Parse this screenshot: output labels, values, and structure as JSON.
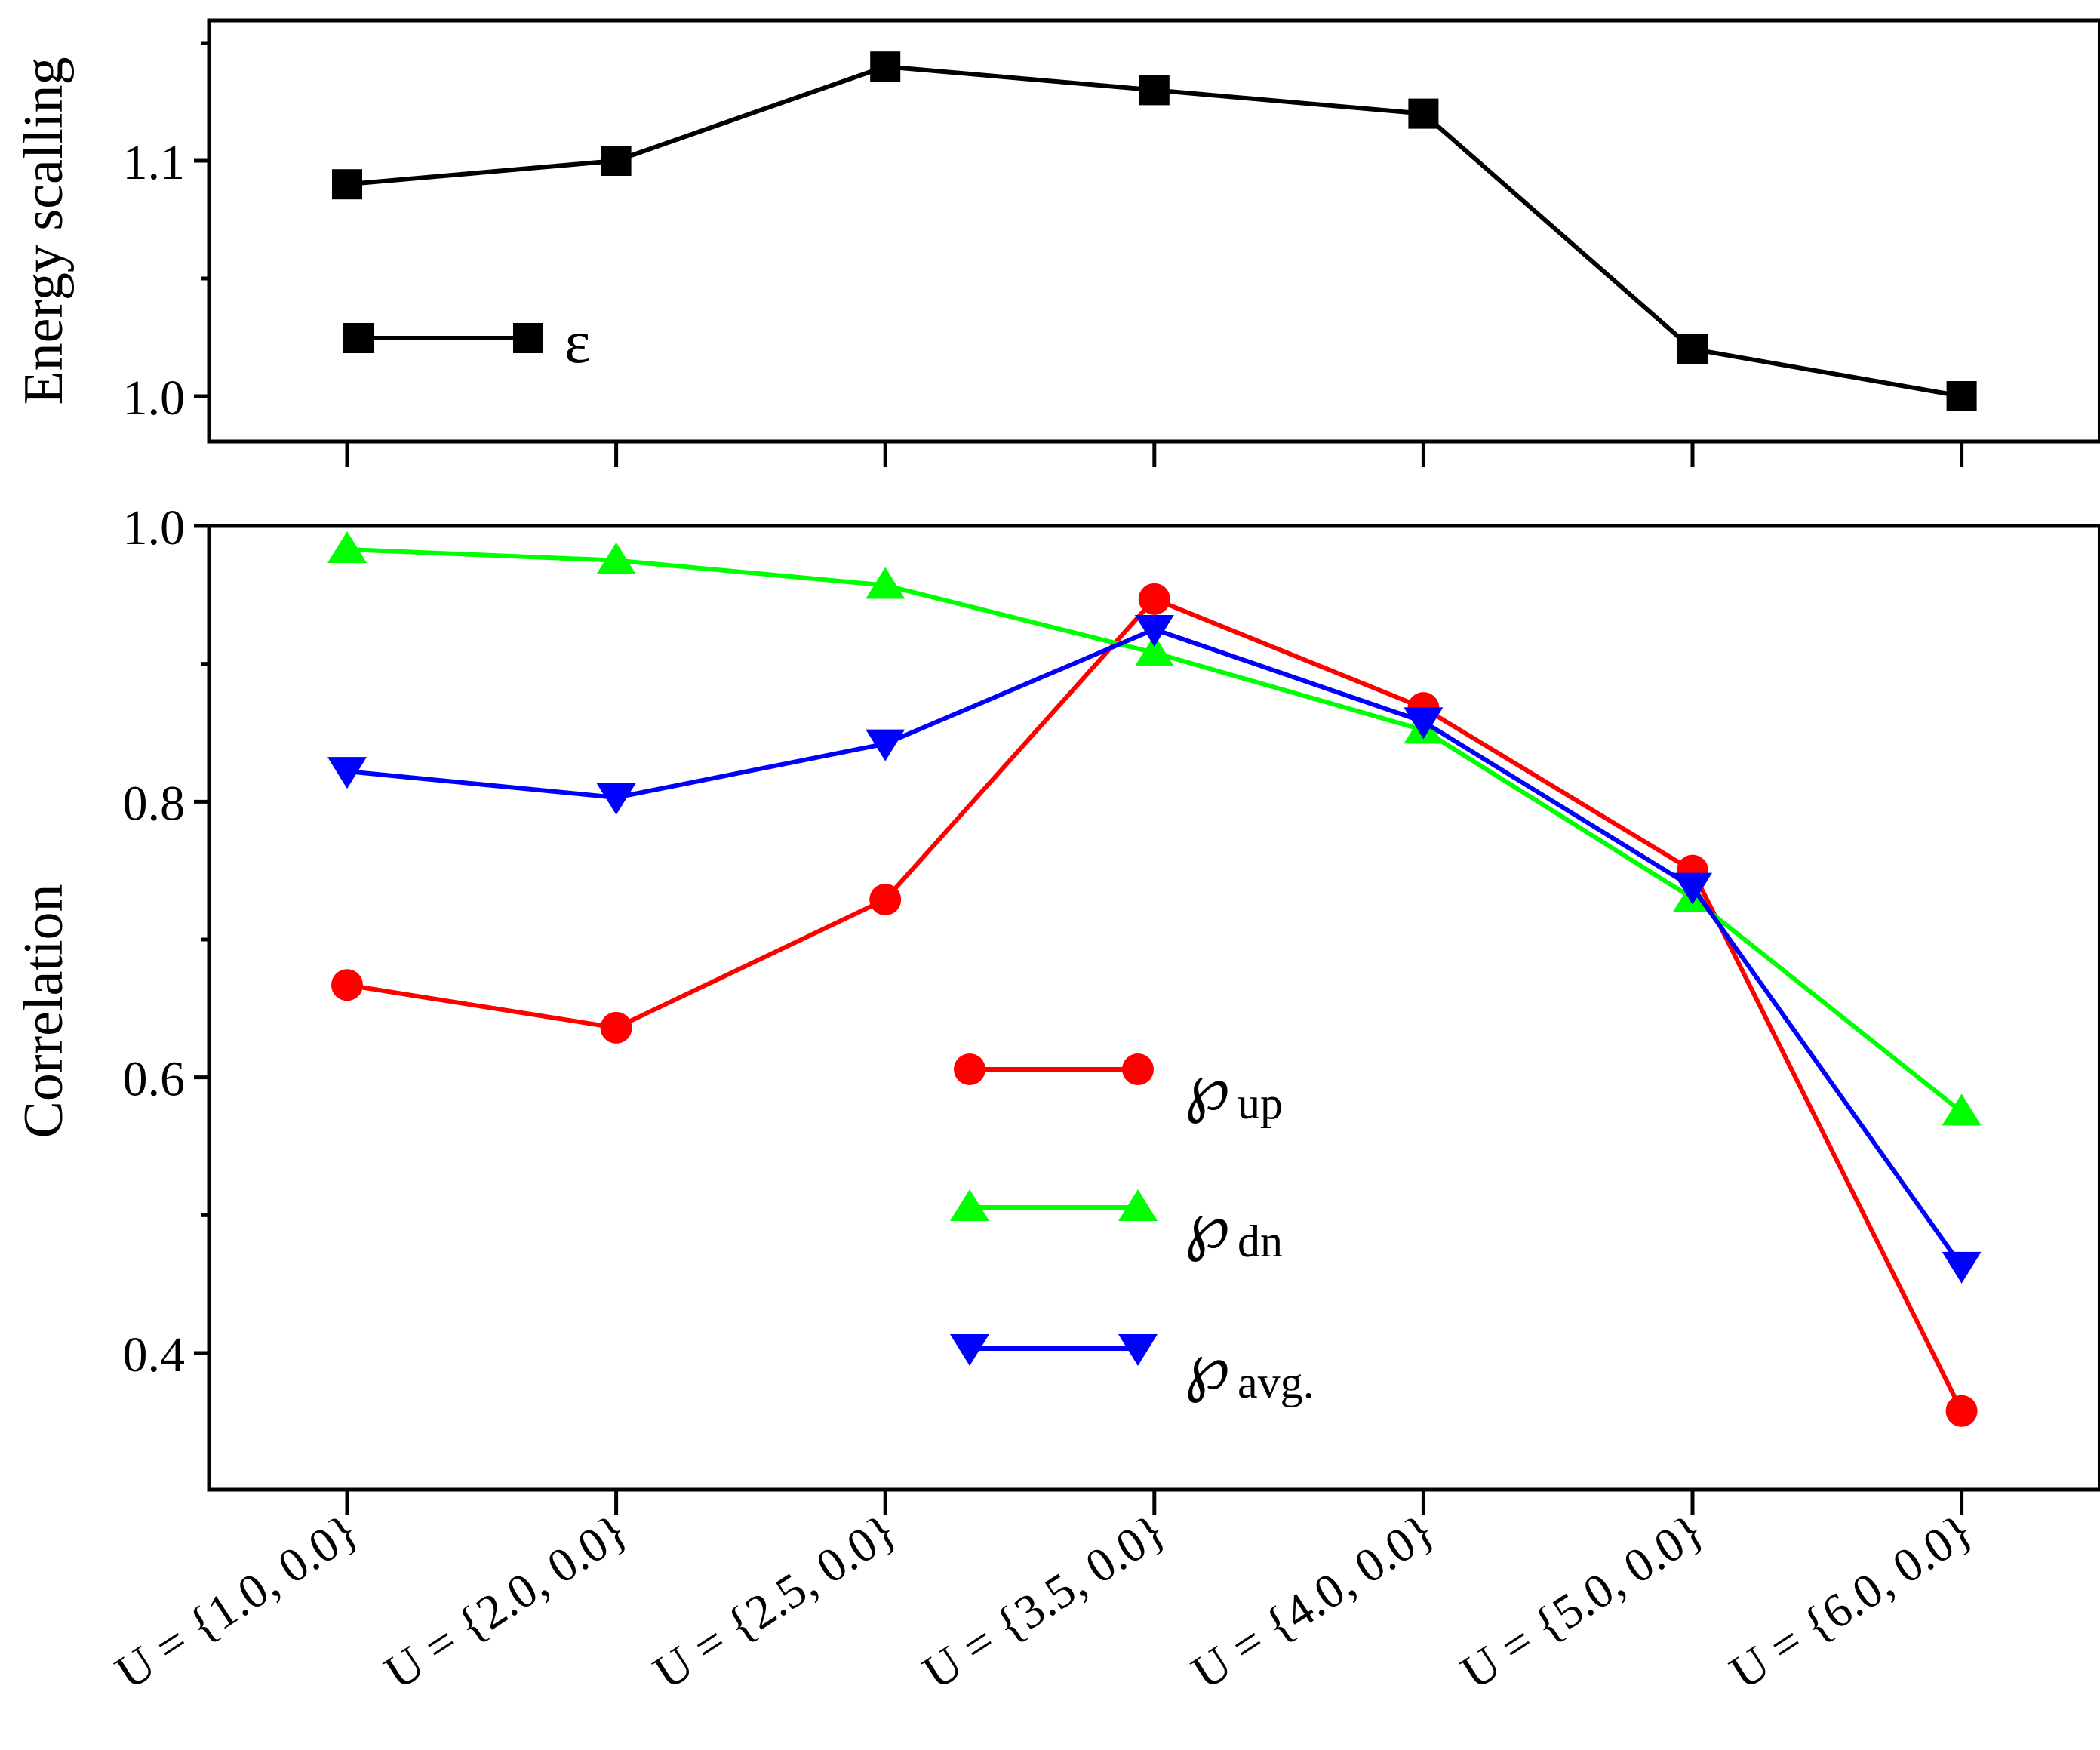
{
  "chart_data": [
    {
      "type": "line",
      "id": "energy",
      "ylabel": "Energy scalling",
      "ylim": [
        0.98,
        1.16
      ],
      "yticks_major": [
        1.0,
        1.1
      ],
      "yticks_minor": [
        1.05,
        1.15
      ],
      "ytick_labels": [
        "1.0",
        "1.1"
      ],
      "categories": [
        "U = {1.0, 0.0}",
        "U = {2.0, 0.0}",
        "U = {2.5, 0.0}",
        "U = {3.5, 0.0}",
        "U = {4.0, 0.0}",
        "U = {5.0, 0.0}",
        "U = {6.0, 0.0}"
      ],
      "series": [
        {
          "name": "ε",
          "color": "#000000",
          "marker": "square",
          "values": [
            1.09,
            1.1,
            1.14,
            1.13,
            1.12,
            1.02,
            1.0
          ]
        }
      ],
      "legend_position": "center-left"
    },
    {
      "type": "line",
      "id": "correlation",
      "ylabel": "Correlation",
      "ylim": [
        0.3,
        1.0
      ],
      "yticks_major": [
        0.4,
        0.6,
        0.8,
        1.0
      ],
      "yticks_minor": [
        0.5,
        0.7,
        0.9
      ],
      "ytick_labels": [
        "0.4",
        "0.6",
        "0.8",
        "1.0"
      ],
      "categories": [
        "U = {1.0, 0.0}",
        "U = {2.0, 0.0}",
        "U = {2.5, 0.0}",
        "U = {3.5, 0.0}",
        "U = {4.0, 0.0}",
        "U = {5.0, 0.0}",
        "U = {6.0, 0.0}"
      ],
      "series": [
        {
          "name": "℘",
          "sub": "up",
          "color": "#ff0000",
          "marker": "circle",
          "values": [
            0.667,
            0.636,
            0.729,
            0.947,
            0.868,
            0.75,
            0.358
          ]
        },
        {
          "name": "℘",
          "sub": "dn",
          "color": "#00ff00",
          "marker": "triangle-up",
          "values": [
            0.983,
            0.975,
            0.957,
            0.908,
            0.852,
            0.73,
            0.575
          ]
        },
        {
          "name": "℘",
          "sub": "avg.",
          "color": "#0000ff",
          "marker": "triangle-down",
          "values": [
            0.822,
            0.803,
            0.842,
            0.925,
            0.858,
            0.738,
            0.463
          ]
        }
      ],
      "legend_position": "center-right"
    }
  ]
}
